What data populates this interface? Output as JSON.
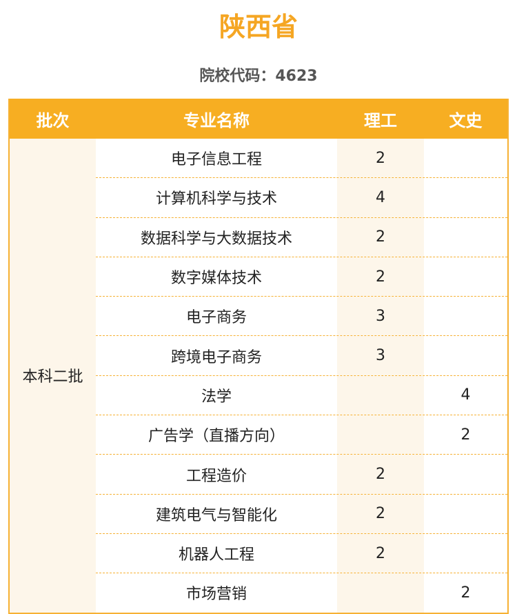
{
  "title": "陕西省",
  "school_code": "院校代码：4623",
  "table": {
    "headers": [
      "批次",
      "专业名称",
      "理工",
      "文史"
    ],
    "batch": "本科二批",
    "rows": [
      {
        "major": "电子信息工程",
        "sci": "2",
        "arts": ""
      },
      {
        "major": "计算机科学与技术",
        "sci": "4",
        "arts": ""
      },
      {
        "major": "数据科学与大数据技术",
        "sci": "2",
        "arts": ""
      },
      {
        "major": "数字媒体技术",
        "sci": "2",
        "arts": ""
      },
      {
        "major": "电子商务",
        "sci": "3",
        "arts": ""
      },
      {
        "major": "跨境电子商务",
        "sci": "3",
        "arts": ""
      },
      {
        "major": "法学",
        "sci": "",
        "arts": "4"
      },
      {
        "major": "广告学（直播方向）",
        "sci": "",
        "arts": "2"
      },
      {
        "major": "工程造价",
        "sci": "2",
        "arts": ""
      },
      {
        "major": "建筑电气与智能化",
        "sci": "2",
        "arts": ""
      },
      {
        "major": "机器人工程",
        "sci": "2",
        "arts": ""
      },
      {
        "major": "市场营销",
        "sci": "",
        "arts": "2"
      }
    ]
  },
  "colors": {
    "accent": "#f7ae22",
    "shade": "#fdf6ea"
  }
}
